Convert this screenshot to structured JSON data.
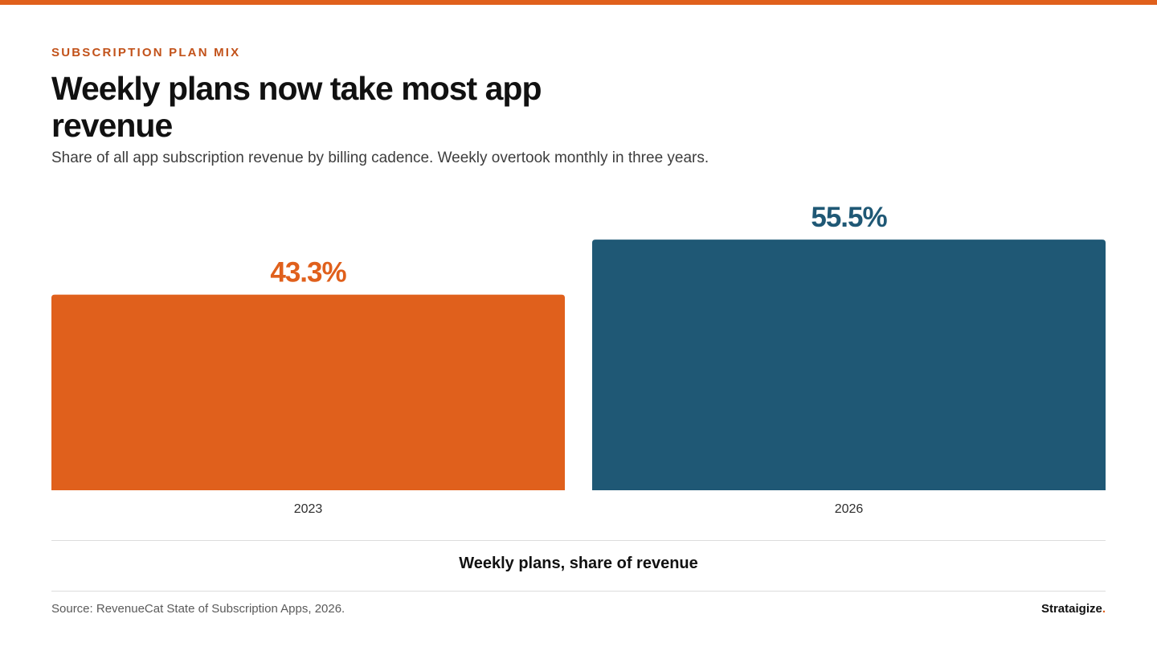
{
  "header": {
    "eyebrow": "SUBSCRIPTION PLAN MIX",
    "title": "Weekly plans now take most app revenue",
    "subtitle": "Share of all app subscription revenue by billing cadence. Weekly overtook monthly in three years."
  },
  "chart_data": {
    "type": "bar",
    "title": "Weekly plans now take most app revenue",
    "subtitle": "Share of all app subscription revenue by billing cadence. Weekly overtook monthly in three years.",
    "categories": [
      "2023",
      "2026"
    ],
    "values": [
      43.3,
      55.5
    ],
    "value_labels": [
      "43.3%",
      "55.5%"
    ],
    "colors": [
      "#e0601c",
      "#1f5875"
    ],
    "xlabel": "Weekly plans, share of revenue",
    "ylabel": "",
    "ylim": [
      0,
      100
    ],
    "grid": false,
    "legend": "none"
  },
  "footer": {
    "source": "Source: RevenueCat State of Subscription Apps, 2026.",
    "brand": "Strataigize",
    "brand_dot": "."
  }
}
